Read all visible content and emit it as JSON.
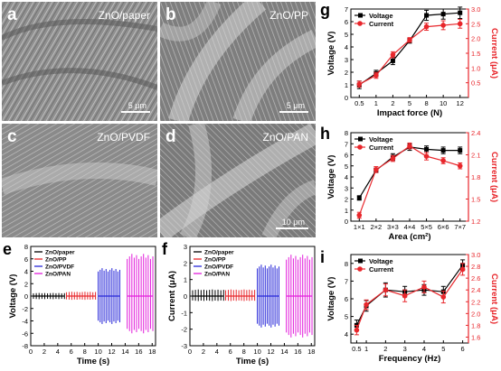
{
  "sem_panels": [
    {
      "letter": "a",
      "material": "ZnO/paper",
      "scale": "5 μm"
    },
    {
      "letter": "b",
      "material": "ZnO/PP",
      "scale": "5 μm"
    },
    {
      "letter": "c",
      "material": "ZnO/PVDF",
      "scale": ""
    },
    {
      "letter": "d",
      "material": "ZnO/PAN",
      "scale": "10 μm"
    }
  ],
  "colors": {
    "black": "#000000",
    "red": "#e8262b",
    "blue": "#2626d8",
    "magenta": "#e21ddb"
  },
  "chart_data": [
    {
      "panel": "e",
      "type": "line",
      "xlabel": "Time (s)",
      "ylabel": "Voltage (V)",
      "xlim": [
        0,
        18.5
      ],
      "ylim": [
        -8,
        8
      ],
      "xticks": [
        0,
        2,
        4,
        6,
        8,
        10,
        12,
        14,
        16,
        18
      ],
      "yticks": [
        -8,
        -6,
        -4,
        -2,
        0,
        2,
        4,
        6,
        8
      ],
      "legend_position": "top-left",
      "series": [
        {
          "name": "ZnO/paper",
          "color": "#000000",
          "x_range": [
            0.4,
            5.0
          ],
          "amplitude": [
            0.5,
            -0.5
          ]
        },
        {
          "name": "ZnO/PP",
          "color": "#e8262b",
          "x_range": [
            5.3,
            9.6
          ],
          "amplitude": [
            0.7,
            -0.6
          ]
        },
        {
          "name": "ZnO/PVDF",
          "color": "#2626d8",
          "x_range": [
            10.0,
            13.2
          ],
          "amplitude": [
            4.5,
            -4.5
          ]
        },
        {
          "name": "ZnO/PAN",
          "color": "#e21ddb",
          "x_range": [
            14.3,
            18.1
          ],
          "amplitude": [
            6.8,
            -6.0
          ]
        }
      ]
    },
    {
      "panel": "f",
      "type": "line",
      "xlabel": "Time (s)",
      "ylabel": "Current (μA)",
      "xlim": [
        0,
        18.5
      ],
      "ylim": [
        -3,
        3
      ],
      "xticks": [
        0,
        2,
        4,
        6,
        8,
        10,
        12,
        14,
        16,
        18
      ],
      "yticks": [
        -3,
        -2,
        -1,
        0,
        1,
        2,
        3
      ],
      "legend_position": "top-left",
      "series": [
        {
          "name": "ZnO/paper",
          "color": "#000000",
          "x_range": [
            0.4,
            5.0
          ],
          "amplitude": [
            0.4,
            -0.3
          ]
        },
        {
          "name": "ZnO/PP",
          "color": "#e8262b",
          "x_range": [
            5.3,
            9.6
          ],
          "amplitude": [
            0.4,
            -0.3
          ]
        },
        {
          "name": "ZnO/PVDF",
          "color": "#2626d8",
          "x_range": [
            10.0,
            13.2
          ],
          "amplitude": [
            1.9,
            -1.9
          ]
        },
        {
          "name": "ZnO/PAN",
          "color": "#e21ddb",
          "x_range": [
            14.3,
            18.1
          ],
          "amplitude": [
            2.5,
            -2.5
          ]
        }
      ]
    },
    {
      "panel": "g",
      "type": "line",
      "xlabel": "Impact force (N)",
      "ylabel": "Voltage (V)",
      "y2label": "Current (μA)",
      "categories": [
        "0.5",
        "1",
        "2",
        "5",
        "8",
        "10",
        "12"
      ],
      "ylim": [
        0,
        7
      ],
      "y2lim": [
        0,
        3.0
      ],
      "yticks": [
        0,
        1,
        2,
        3,
        4,
        5,
        6,
        7
      ],
      "y2ticks": [
        0.5,
        1.0,
        1.5,
        2.0,
        2.5,
        3.0
      ],
      "legend_position": "top-left",
      "series": [
        {
          "name": "Voltage",
          "color": "#000000",
          "axis": "left",
          "values": [
            1.0,
            1.9,
            2.9,
            4.5,
            6.5,
            6.6,
            6.7
          ],
          "errors": [
            0.3,
            0.25,
            0.3,
            0.2,
            0.4,
            0.4,
            0.45
          ]
        },
        {
          "name": "Current",
          "color": "#e8262b",
          "axis": "right",
          "values": [
            0.45,
            0.75,
            1.45,
            1.95,
            2.4,
            2.45,
            2.5
          ],
          "errors": [
            0.1,
            0.1,
            0.1,
            0.08,
            0.12,
            0.15,
            0.15
          ]
        }
      ]
    },
    {
      "panel": "h",
      "type": "line",
      "xlabel": "Area (cm²)",
      "ylabel": "Voltage (V)",
      "y2label": "Current (μA)",
      "categories": [
        "1×1",
        "2×2",
        "3×3",
        "4×4",
        "5×5",
        "6×6",
        "7×7"
      ],
      "ylim": [
        0,
        8
      ],
      "y2lim": [
        1.2,
        2.4
      ],
      "yticks": [
        0,
        1,
        2,
        3,
        4,
        5,
        6,
        7,
        8
      ],
      "y2ticks": [
        1.2,
        1.5,
        1.8,
        2.1,
        2.4
      ],
      "legend_position": "top-left",
      "series": [
        {
          "name": "Voltage",
          "color": "#000000",
          "axis": "left",
          "values": [
            2.1,
            4.6,
            5.8,
            6.7,
            6.5,
            6.4,
            6.4
          ],
          "errors": [
            0.2,
            0.2,
            0.3,
            0.3,
            0.3,
            0.3,
            0.3
          ]
        },
        {
          "name": "Current",
          "color": "#e8262b",
          "axis": "right",
          "values": [
            1.28,
            1.9,
            2.05,
            2.22,
            2.08,
            2.02,
            1.95
          ],
          "errors": [
            0.04,
            0.04,
            0.04,
            0.04,
            0.05,
            0.04,
            0.04
          ]
        }
      ]
    },
    {
      "panel": "i",
      "type": "line",
      "xlabel": "Frequency (Hz)",
      "ylabel": "Voltage (V)",
      "y2label": "Current (μA)",
      "x": [
        0.5,
        1,
        2,
        3,
        4,
        5,
        6
      ],
      "xlim": [
        0.2,
        6.3
      ],
      "xticks": [
        0.5,
        1,
        2,
        3,
        4,
        5,
        6
      ],
      "ylim": [
        3.5,
        8.5
      ],
      "y2lim": [
        1.5,
        3.0
      ],
      "yticks": [
        4,
        5,
        6,
        7,
        8
      ],
      "y2ticks": [
        1.6,
        1.8,
        2.0,
        2.2,
        2.4,
        2.6,
        2.8,
        3.0
      ],
      "legend_position": "top-left",
      "series": [
        {
          "name": "Voltage",
          "color": "#000000",
          "axis": "left",
          "values": [
            4.5,
            5.6,
            6.5,
            6.4,
            6.5,
            6.4,
            7.9
          ],
          "errors": [
            0.3,
            0.3,
            0.4,
            0.3,
            0.3,
            0.3,
            0.3
          ]
        },
        {
          "name": "Current",
          "color": "#e8262b",
          "axis": "right",
          "values": [
            1.72,
            2.15,
            2.4,
            2.3,
            2.45,
            2.28,
            2.75
          ],
          "errors": [
            0.08,
            0.08,
            0.1,
            0.1,
            0.1,
            0.1,
            0.1
          ]
        }
      ]
    }
  ]
}
